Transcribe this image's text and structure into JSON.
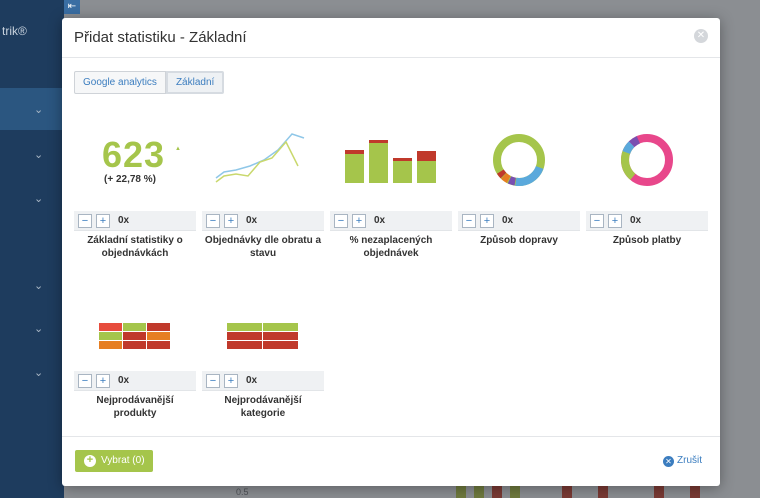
{
  "background": {
    "logo_text": "trik®",
    "back_icon": "arrow-left-icon",
    "axis_tick": "0.5"
  },
  "modal": {
    "title": "Přidat statistiku - Základní",
    "close_icon": "close-icon",
    "tabs": [
      {
        "label": "Google analytics",
        "active": false
      },
      {
        "label": "Základní",
        "active": true
      }
    ],
    "cards": [
      {
        "label": "Základní statistiky o objednávkách",
        "count": "0x",
        "big_number": "623",
        "big_sub": "(+ 22,78 %)"
      },
      {
        "label": "Objednávky dle obratu a stavu",
        "count": "0x"
      },
      {
        "label": "% nezaplacených objednávek",
        "count": "0x"
      },
      {
        "label": "Způsob dopravy",
        "count": "0x"
      },
      {
        "label": "Způsob platby",
        "count": "0x"
      },
      {
        "label": "Nejprodávanější produkty",
        "count": "0x"
      },
      {
        "label": "Nejprodávanější kategorie",
        "count": "0x"
      }
    ],
    "counter_minus": "−",
    "counter_plus": "+",
    "footer": {
      "select_label": "Vybrat (0)",
      "cancel_label": "Zrušit"
    }
  },
  "colors": {
    "accent_green": "#a5c54b",
    "accent_blue": "#3b7dbf",
    "red": "#c0392b",
    "orange": "#e67e22",
    "pink": "#e8478b",
    "sidebar": "#1e3c5e"
  }
}
